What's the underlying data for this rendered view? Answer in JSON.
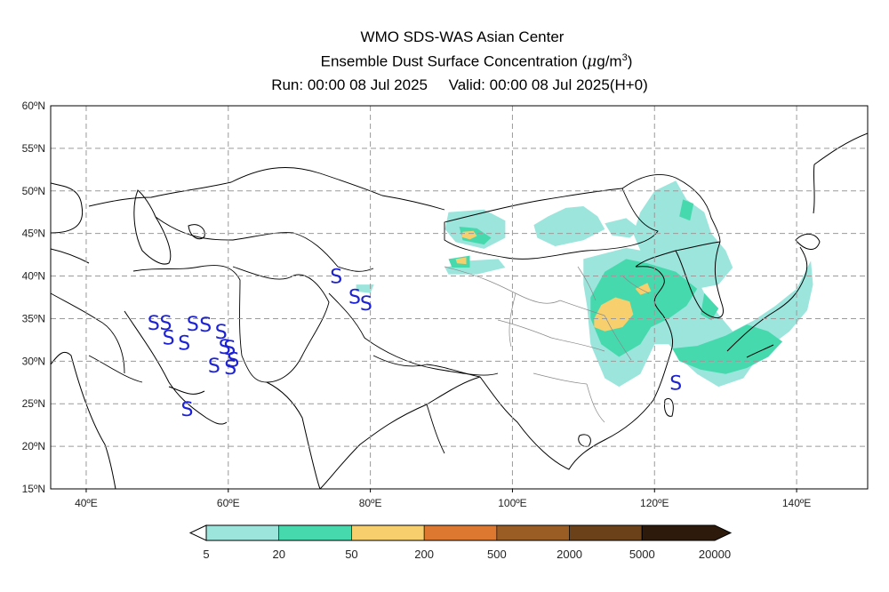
{
  "header": {
    "title": "WMO SDS-WAS Asian Center",
    "subtitle_prefix": "Ensemble Dust Surface Concentration (",
    "subtitle_unit_mu": "μ",
    "subtitle_unit_g": "g/m",
    "subtitle_unit_exp": "3",
    "subtitle_suffix": ")",
    "run_text": "Run: 00:00 08 Jul 2025",
    "valid_text": "Valid: 00:00 08 Jul 2025(H+0)"
  },
  "map": {
    "lon_range": [
      35,
      150
    ],
    "lat_range": [
      15,
      60
    ],
    "lat_ticks": [
      {
        "value": 60,
        "label": "60ºN"
      },
      {
        "value": 55,
        "label": "55ºN"
      },
      {
        "value": 50,
        "label": "50ºN"
      },
      {
        "value": 45,
        "label": "45ºN"
      },
      {
        "value": 40,
        "label": "40ºN"
      },
      {
        "value": 35,
        "label": "35ºN"
      },
      {
        "value": 30,
        "label": "30ºN"
      },
      {
        "value": 25,
        "label": "25ºN"
      },
      {
        "value": 20,
        "label": "20ºN"
      },
      {
        "value": 15,
        "label": "15ºN"
      }
    ],
    "lon_ticks": [
      {
        "value": 40,
        "label": "40ºE"
      },
      {
        "value": 60,
        "label": "60ºE"
      },
      {
        "value": 80,
        "label": "80ºE"
      },
      {
        "value": 100,
        "label": "100ºE"
      },
      {
        "value": 120,
        "label": "120ºE"
      },
      {
        "value": 140,
        "label": "140ºE"
      }
    ],
    "gridlines": true,
    "dust_marker": "S",
    "dust_marker_color": "#1d22d4",
    "dust_stations": [
      {
        "lon": 49.5,
        "lat": 34.5
      },
      {
        "lon": 51.2,
        "lat": 34.5
      },
      {
        "lon": 51.6,
        "lat": 32.8
      },
      {
        "lon": 53.8,
        "lat": 32.2
      },
      {
        "lon": 55.0,
        "lat": 34.4
      },
      {
        "lon": 56.8,
        "lat": 34.3
      },
      {
        "lon": 59.0,
        "lat": 33.5
      },
      {
        "lon": 59.5,
        "lat": 31.7
      },
      {
        "lon": 60.2,
        "lat": 31.6
      },
      {
        "lon": 60.7,
        "lat": 30.2
      },
      {
        "lon": 58.0,
        "lat": 29.5
      },
      {
        "lon": 60.3,
        "lat": 29.3
      },
      {
        "lon": 54.2,
        "lat": 24.4
      },
      {
        "lon": 75.2,
        "lat": 40.0
      },
      {
        "lon": 77.8,
        "lat": 37.6
      },
      {
        "lon": 79.4,
        "lat": 36.8
      },
      {
        "lon": 123.0,
        "lat": 27.5
      }
    ],
    "concentration_regions": [
      {
        "level": "5-20",
        "color": "#9be5dd",
        "points": [
          [
            90.5,
            41
          ],
          [
            94,
            41.8
          ],
          [
            98,
            42
          ],
          [
            99,
            41
          ],
          [
            95,
            40.2
          ],
          [
            91,
            40.2
          ]
        ]
      },
      {
        "level": "5-20",
        "color": "#9be5dd",
        "points": [
          [
            78,
            39
          ],
          [
            80.5,
            39
          ],
          [
            80,
            38
          ],
          [
            78,
            38.2
          ]
        ]
      },
      {
        "level": "5-20",
        "color": "#9be5dd",
        "points": [
          [
            91,
            47.5
          ],
          [
            96,
            47.8
          ],
          [
            99,
            46.5
          ],
          [
            99,
            44.5
          ],
          [
            96,
            43.2
          ],
          [
            92,
            44
          ],
          [
            90.5,
            45.5
          ]
        ]
      },
      {
        "level": "5-20",
        "color": "#9be5dd",
        "points": [
          [
            103,
            46
          ],
          [
            105,
            47
          ],
          [
            107.5,
            48
          ],
          [
            110,
            48.2
          ],
          [
            112,
            47
          ],
          [
            113,
            45.5
          ],
          [
            110,
            44.2
          ],
          [
            106,
            43.5
          ],
          [
            103.5,
            44.5
          ]
        ]
      },
      {
        "level": "5-20",
        "color": "#9be5dd",
        "points": [
          [
            113,
            46.2
          ],
          [
            116,
            46.8
          ],
          [
            118,
            45.5
          ],
          [
            116.5,
            44.5
          ],
          [
            114,
            44.8
          ]
        ]
      },
      {
        "level": "5-20",
        "color": "#9be5dd",
        "points": [
          [
            120,
            50
          ],
          [
            123,
            51.2
          ],
          [
            124.5,
            49
          ],
          [
            127,
            47.5
          ],
          [
            128,
            45
          ],
          [
            130,
            43
          ],
          [
            131,
            41
          ],
          [
            129,
            39
          ],
          [
            126,
            38.5
          ],
          [
            124,
            40
          ],
          [
            121,
            41.5
          ],
          [
            118,
            43
          ],
          [
            117,
            45
          ],
          [
            118,
            47.5
          ]
        ]
      },
      {
        "level": "5-20",
        "color": "#9be5dd",
        "points": [
          [
            110,
            42
          ],
          [
            116,
            43.3
          ],
          [
            121.5,
            42.5
          ],
          [
            125.5,
            40.5
          ],
          [
            127,
            38
          ],
          [
            129,
            35.5
          ],
          [
            131,
            33.5
          ],
          [
            134,
            34.8
          ],
          [
            137,
            36.5
          ],
          [
            140,
            38.5
          ],
          [
            142,
            41.8
          ],
          [
            142.3,
            39
          ],
          [
            141.5,
            36
          ],
          [
            139,
            33.5
          ],
          [
            135,
            31
          ],
          [
            132.5,
            28
          ],
          [
            129,
            27
          ],
          [
            126,
            28.5
          ],
          [
            124,
            30
          ],
          [
            122,
            32
          ],
          [
            120,
            32
          ],
          [
            118,
            28.5
          ],
          [
            115,
            27
          ],
          [
            113,
            28
          ],
          [
            111,
            32
          ],
          [
            110.5,
            36.5
          ],
          [
            110,
            39
          ]
        ]
      },
      {
        "level": "20-50",
        "color": "#46d9ae",
        "points": [
          [
            92.5,
            45.8
          ],
          [
            95,
            45.6
          ],
          [
            97,
            44.5
          ],
          [
            96,
            43.7
          ],
          [
            93,
            44.2
          ]
        ]
      },
      {
        "level": "20-50",
        "color": "#46d9ae",
        "points": [
          [
            91,
            42
          ],
          [
            94,
            42.4
          ],
          [
            94,
            41
          ],
          [
            91.5,
            41
          ]
        ]
      },
      {
        "level": "20-50",
        "color": "#46d9ae",
        "points": [
          [
            124,
            49
          ],
          [
            125.5,
            48.5
          ],
          [
            125,
            46.5
          ],
          [
            123.5,
            47
          ]
        ]
      },
      {
        "level": "20-50",
        "color": "#46d9ae",
        "points": [
          [
            111,
            37.5
          ],
          [
            113,
            40.5
          ],
          [
            116,
            42
          ],
          [
            119,
            41.5
          ],
          [
            123,
            40.5
          ],
          [
            126,
            38.5
          ],
          [
            124.5,
            36.5
          ],
          [
            122,
            35
          ],
          [
            119.5,
            34
          ],
          [
            118,
            32
          ],
          [
            115,
            30.5
          ],
          [
            112.5,
            32
          ],
          [
            111,
            35
          ]
        ]
      },
      {
        "level": "20-50",
        "color": "#46d9ae",
        "points": [
          [
            122.5,
            31.5
          ],
          [
            126,
            31.8
          ],
          [
            130,
            33
          ],
          [
            133,
            34.3
          ],
          [
            136,
            33.5
          ],
          [
            138,
            32.3
          ],
          [
            136,
            30.5
          ],
          [
            133,
            29.2
          ],
          [
            130,
            28.5
          ],
          [
            126.5,
            29
          ],
          [
            123.5,
            30
          ]
        ]
      },
      {
        "level": "20-50",
        "color": "#46d9ae",
        "points": [
          [
            127,
            38
          ],
          [
            129,
            36.2
          ],
          [
            128,
            34.8
          ],
          [
            126.5,
            35.5
          ]
        ]
      },
      {
        "level": "50-200",
        "color": "#f7cf6c",
        "points": [
          [
            93,
            45.2
          ],
          [
            94.5,
            45.3
          ],
          [
            95,
            44.7
          ],
          [
            94,
            44.3
          ],
          [
            92.8,
            44.6
          ]
        ]
      },
      {
        "level": "50-200",
        "color": "#f7cf6c",
        "points": [
          [
            92,
            42
          ],
          [
            93.5,
            42.2
          ],
          [
            93.5,
            41.4
          ],
          [
            92.2,
            41.5
          ]
        ]
      },
      {
        "level": "50-200",
        "color": "#f7cf6c",
        "points": [
          [
            111.5,
            35
          ],
          [
            112.5,
            36.6
          ],
          [
            114.5,
            37.5
          ],
          [
            116.5,
            37
          ],
          [
            117,
            35.5
          ],
          [
            115.5,
            34
          ],
          [
            113,
            33.5
          ],
          [
            111.5,
            34
          ]
        ]
      },
      {
        "level": "50-200",
        "color": "#f7cf6c",
        "points": [
          [
            117.3,
            38.5
          ],
          [
            119,
            39.2
          ],
          [
            119.5,
            38.2
          ],
          [
            118,
            37.8
          ]
        ]
      }
    ],
    "region_colors_note": "colours follow colorbar levels"
  },
  "colorbar": {
    "colors": [
      "#ffffff",
      "#9be5dd",
      "#46d9ae",
      "#f7cf6c",
      "#dd7831",
      "#9a5d23",
      "#6a4119",
      "#2d1a0b"
    ],
    "labels": [
      "5",
      "20",
      "50",
      "200",
      "500",
      "2000",
      "5000",
      "20000"
    ]
  }
}
